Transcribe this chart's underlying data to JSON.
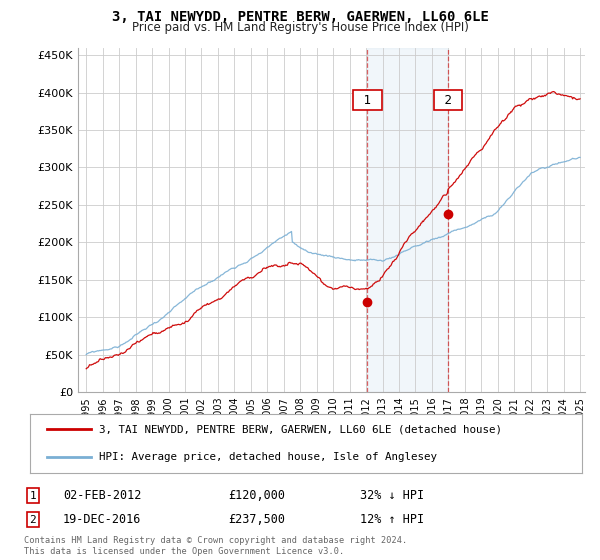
{
  "title": "3, TAI NEWYDD, PENTRE BERW, GAERWEN, LL60 6LE",
  "subtitle": "Price paid vs. HM Land Registry's House Price Index (HPI)",
  "ylim": [
    0,
    460000
  ],
  "yticks": [
    0,
    50000,
    100000,
    150000,
    200000,
    250000,
    300000,
    350000,
    400000,
    450000
  ],
  "ytick_labels": [
    "£0",
    "£50K",
    "£100K",
    "£150K",
    "£200K",
    "£250K",
    "£300K",
    "£350K",
    "£400K",
    "£450K"
  ],
  "sale1_date": 2012.08,
  "sale1_price": 120000,
  "sale1_label": "1",
  "sale1_text": "02-FEB-2012",
  "sale1_amount": "£120,000",
  "sale1_pct": "32% ↓ HPI",
  "sale2_date": 2016.97,
  "sale2_price": 237500,
  "sale2_label": "2",
  "sale2_text": "19-DEC-2016",
  "sale2_amount": "£237,500",
  "sale2_pct": "12% ↑ HPI",
  "hpi_color": "#7aafd4",
  "price_color": "#cc0000",
  "vline_color": "#cc0000",
  "grid_color": "#cccccc",
  "background_color": "#ffffff",
  "legend_label_price": "3, TAI NEWYDD, PENTRE BERW, GAERWEN, LL60 6LE (detached house)",
  "legend_label_hpi": "HPI: Average price, detached house, Isle of Anglesey",
  "footnote": "Contains HM Land Registry data © Crown copyright and database right 2024.\nThis data is licensed under the Open Government Licence v3.0.",
  "xstart": 1995,
  "xend": 2025
}
